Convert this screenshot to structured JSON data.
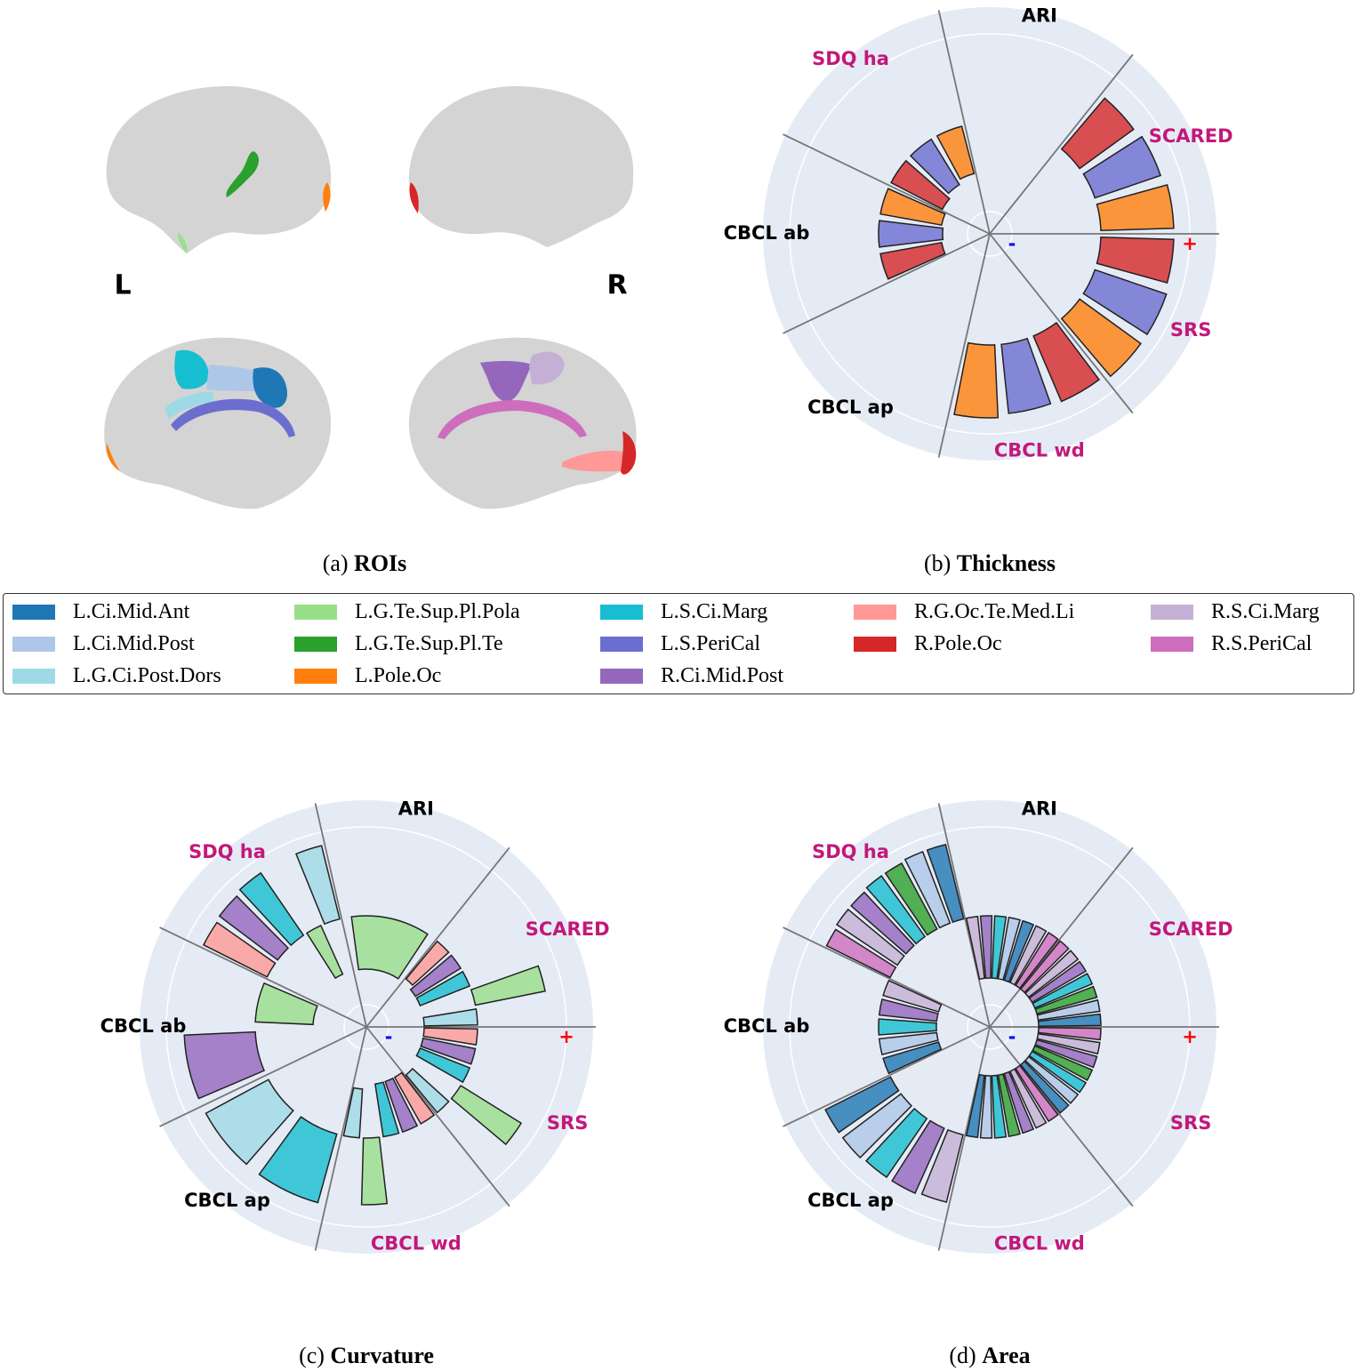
{
  "figure": {
    "left_label": "L",
    "right_label": "R",
    "caption": {
      "label": "(a)",
      "title": "ROIs"
    },
    "legend": [
      {
        "name": "L.Ci.Mid.Ant",
        "color": "#1f77b4"
      },
      {
        "name": "L.Ci.Mid.Post",
        "color": "#aec7e8"
      },
      {
        "name": "L.G.Ci.Post.Dors",
        "color": "#9edae5"
      },
      {
        "name": "L.G.Te.Sup.Pl.Pola",
        "color": "#98df8a"
      },
      {
        "name": "L.G.Te.Sup.Pl.Te",
        "color": "#2ca02c"
      },
      {
        "name": "L.Pole.Oc",
        "color": "#ff7f0e"
      },
      {
        "name": "L.S.Ci.Marg",
        "color": "#17becf"
      },
      {
        "name": "L.S.PeriCal",
        "color": "#6b6ecf"
      },
      {
        "name": "R.Ci.Mid.Post",
        "color": "#9467bd"
      },
      {
        "name": "R.G.Oc.Te.Med.Li",
        "color": "#ff9896"
      },
      {
        "name": "R.Pole.Oc",
        "color": "#d62728"
      },
      {
        "name": "R.S.Ci.Marg",
        "color": "#c5b0d5"
      },
      {
        "name": "R.S.PeriCal",
        "color": "#ce6dbd"
      }
    ]
  },
  "chart_data": [
    {
      "type": "polar_bar",
      "caption": {
        "label": "(b)",
        "title": "Thickness"
      },
      "rlim": [
        -1.25,
        1.3
      ],
      "rticks": [
        {
          "value": -1,
          "label": "-"
        },
        {
          "value": 1,
          "label": "+"
        }
      ],
      "rtick_colors": [
        "#0000ff",
        "#ff0000"
      ],
      "grid": true,
      "sectors": [
        {
          "name": "SCARED",
          "label_color": "#c2187a",
          "values": [
            0.75,
            0.78,
            0.82
          ],
          "colors": [
            "#d62728",
            "#6b6ecf",
            "#ff7f0e"
          ]
        },
        {
          "name": "ARI",
          "label_color": "#000000",
          "values": [],
          "colors": []
        },
        {
          "name": "SDQ ha",
          "label_color": "#c2187a",
          "values": [
            -0.65,
            -0.6,
            -0.55
          ],
          "colors": [
            "#d62728",
            "#6b6ecf",
            "#ff7f0e"
          ]
        },
        {
          "name": "CBCL ab",
          "label_color": "#000000",
          "values": [
            -0.7,
            -0.72,
            -0.7
          ],
          "colors": [
            "#d62728",
            "#6b6ecf",
            "#ff7f0e"
          ]
        },
        {
          "name": "CBCL ap",
          "label_color": "#000000",
          "values": [],
          "colors": []
        },
        {
          "name": "CBCL wd",
          "label_color": "#c2187a",
          "values": [
            0.8,
            0.78,
            0.82
          ],
          "colors": [
            "#d62728",
            "#6b6ecf",
            "#ff7f0e"
          ]
        },
        {
          "name": "SRS",
          "label_color": "#c2187a",
          "values": [
            0.82,
            0.85,
            0.85
          ],
          "colors": [
            "#d62728",
            "#6b6ecf",
            "#ff7f0e"
          ]
        }
      ]
    },
    {
      "type": "polar_bar",
      "caption": {
        "label": "(c)",
        "title": "Curvature"
      },
      "rlim": [
        -1.25,
        1.3
      ],
      "rticks": [
        {
          "value": -1,
          "label": "-"
        },
        {
          "value": 1,
          "label": "+"
        }
      ],
      "rtick_colors": [
        "#0000ff",
        "#ff0000"
      ],
      "grid": true,
      "sectors": [
        {
          "name": "SCARED",
          "label_color": "#c2187a",
          "values": [
            -0.55,
            -0.6,
            -0.6,
            0.8,
            -0.6
          ],
          "colors": [
            "#ff9896",
            "#9467bd",
            "#17becf",
            "#98df8a",
            "#9edae5"
          ]
        },
        {
          "name": "ARI",
          "label_color": "#000000",
          "values": [
            -0.6
          ],
          "colors": [
            "#98df8a"
          ]
        },
        {
          "name": "SDQ ha",
          "label_color": "#c2187a",
          "values": [
            0.8,
            0.82,
            0.85,
            -0.6,
            0.85
          ],
          "colors": [
            "#ff9896",
            "#9467bd",
            "#17becf",
            "#98df8a",
            "#9edae5"
          ]
        },
        {
          "name": "CBCL ab",
          "label_color": "#000000",
          "values": [
            0.8,
            -0.65
          ],
          "colors": [
            "#9467bd",
            "#98df8a"
          ]
        },
        {
          "name": "CBCL ap",
          "label_color": "#000000",
          "values": [
            0.8,
            0.8
          ],
          "colors": [
            "#17becf",
            "#9edae5"
          ]
        },
        {
          "name": "CBCL wd",
          "label_color": "#c2187a",
          "values": [
            -0.6,
            -0.6,
            -0.6,
            0.75,
            -0.55
          ],
          "colors": [
            "#ff9896",
            "#9467bd",
            "#17becf",
            "#98df8a",
            "#9edae5"
          ]
        },
        {
          "name": "SRS",
          "label_color": "#c2187a",
          "values": [
            -0.6,
            -0.6,
            -0.6,
            0.8,
            -0.55
          ],
          "colors": [
            "#ff9896",
            "#9467bd",
            "#17becf",
            "#98df8a",
            "#9edae5"
          ]
        }
      ]
    },
    {
      "type": "polar_bar",
      "caption": {
        "label": "(d)",
        "title": "Area"
      },
      "rlim": [
        -1.25,
        1.3
      ],
      "rticks": [
        {
          "value": -1,
          "label": "-"
        },
        {
          "value": 1,
          "label": "+"
        }
      ],
      "rtick_colors": [
        "#0000ff",
        "#ff0000"
      ],
      "grid": true,
      "sectors": [
        {
          "name": "SCARED",
          "label_color": "#c2187a",
          "values": [
            -0.7,
            -0.7,
            -0.7,
            -0.7,
            -0.7,
            -0.7,
            -0.7
          ],
          "colors": [
            "#ce6dbd",
            "#c5b0d5",
            "#9467bd",
            "#17becf",
            "#2ca02c",
            "#aec7e8",
            "#1f77b4"
          ]
        },
        {
          "name": "ARI",
          "label_color": "#000000",
          "values": [
            -0.7,
            -0.7,
            -0.7,
            -0.7,
            -0.7,
            -0.7,
            -0.7
          ],
          "colors": [
            "#c5b0d5",
            "#9467bd",
            "#17becf",
            "#aec7e8",
            "#1f77b4",
            "#c5b0d5",
            "#ce6dbd"
          ]
        },
        {
          "name": "SDQ ha",
          "label_color": "#c2187a",
          "values": [
            0.8,
            0.82,
            0.82,
            0.84,
            0.84,
            0.86,
            0.86
          ],
          "colors": [
            "#ce6dbd",
            "#c5b0d5",
            "#9467bd",
            "#17becf",
            "#2ca02c",
            "#aec7e8",
            "#1f77b4"
          ]
        },
        {
          "name": "CBCL ab",
          "label_color": "#000000",
          "values": [
            -0.65,
            -0.65,
            -0.65,
            -0.65,
            -0.65
          ],
          "colors": [
            "#1f77b4",
            "#aec7e8",
            "#17becf",
            "#9467bd",
            "#c5b0d5"
          ]
        },
        {
          "name": "CBCL ap",
          "label_color": "#000000",
          "values": [
            0.78,
            0.8,
            0.8,
            0.82,
            0.82
          ],
          "colors": [
            "#c5b0d5",
            "#9467bd",
            "#17becf",
            "#aec7e8",
            "#1f77b4"
          ]
        },
        {
          "name": "CBCL wd",
          "label_color": "#c2187a",
          "values": [
            -0.7,
            -0.7,
            -0.7,
            -0.7,
            -0.7,
            -0.7,
            -0.7
          ],
          "colors": [
            "#ce6dbd",
            "#c5b0d5",
            "#9467bd",
            "#2ca02c",
            "#17becf",
            "#aec7e8",
            "#1f77b4"
          ]
        },
        {
          "name": "SRS",
          "label_color": "#c2187a",
          "values": [
            -0.7,
            -0.7,
            -0.7,
            -0.7,
            -0.7,
            -0.7,
            -0.7
          ],
          "colors": [
            "#ce6dbd",
            "#c5b0d5",
            "#9467bd",
            "#2ca02c",
            "#17becf",
            "#aec7e8",
            "#1f77b4"
          ]
        }
      ]
    }
  ]
}
